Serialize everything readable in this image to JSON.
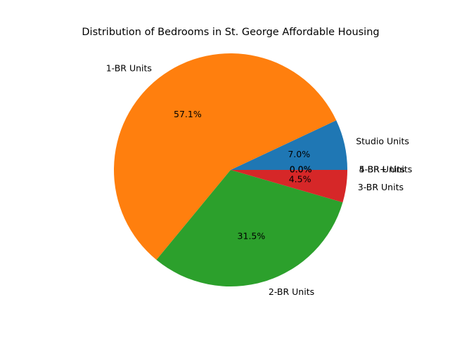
{
  "chart_data": {
    "type": "pie",
    "title": "Distribution of Bedrooms in St. George Affordable Housing",
    "categories": [
      "Studio Units",
      "1-BR Units",
      "2-BR Units",
      "3-BR Units",
      "4-BR Units",
      "5-BR+ Units"
    ],
    "values": [
      7.0,
      57.1,
      31.5,
      4.5,
      0.0,
      0.0
    ],
    "percent_labels": [
      "7.0%",
      "57.1%",
      "31.5%",
      "4.5%",
      "0.0%",
      "0.0%"
    ],
    "colors": [
      "#1f77b4",
      "#ff7f0e",
      "#2ca02c",
      "#d62728",
      "#9467bd",
      "#8c564b"
    ],
    "start_angle_deg": 0,
    "direction": "counterclockwise",
    "legend": "none"
  }
}
